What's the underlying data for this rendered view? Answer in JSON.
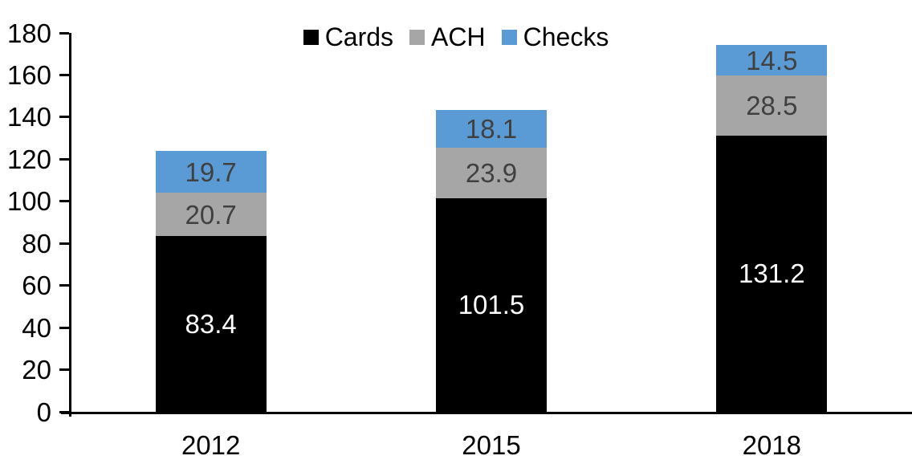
{
  "chart_data": {
    "type": "bar",
    "stacked": true,
    "title": "",
    "xlabel": "",
    "ylabel": "",
    "categories": [
      "2012",
      "2015",
      "2018"
    ],
    "series": [
      {
        "name": "Cards",
        "color": "#000000",
        "label_color": "#ffffff",
        "values": [
          83.4,
          101.5,
          131.2
        ]
      },
      {
        "name": "ACH",
        "color": "#a6a6a6",
        "label_color": "#404040",
        "values": [
          20.7,
          23.9,
          28.5
        ]
      },
      {
        "name": "Checks",
        "color": "#5b9bd5",
        "label_color": "#404040",
        "values": [
          19.7,
          18.1,
          14.5
        ]
      }
    ],
    "totals": [
      123.8,
      143.5,
      174.2
    ],
    "ylim": [
      0,
      180
    ],
    "ytick_step": 20,
    "ytick_labels": [
      "0",
      "20",
      "40",
      "60",
      "80",
      "100",
      "120",
      "140",
      "160",
      "180"
    ],
    "grid": false,
    "legend_position": "top",
    "axis_color": "#000000",
    "background_color": "#ffffff"
  }
}
